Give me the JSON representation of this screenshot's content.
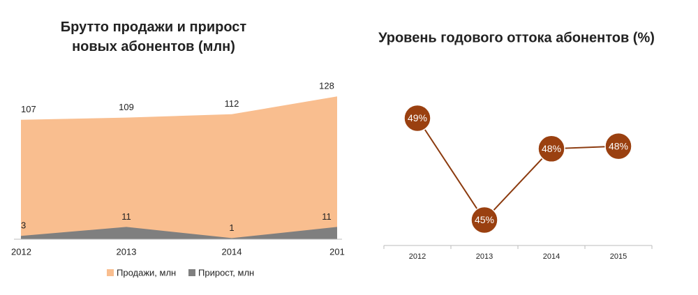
{
  "chart_data": [
    {
      "type": "area",
      "title": "Брутто продажи и прирост новых абонентов (млн)",
      "categories": [
        "2012",
        "2013",
        "2014",
        "201"
      ],
      "series": [
        {
          "name": "Продажи, млн",
          "color": "#f9be8f",
          "values": [
            107,
            109,
            112,
            128
          ]
        },
        {
          "name": "Прирост, млн",
          "color": "#7f7f7f",
          "values": [
            3,
            11,
            1,
            11
          ]
        }
      ],
      "ylim": [
        0,
        140
      ],
      "legend": "bottom"
    },
    {
      "type": "line",
      "title": "Уровень годового оттока абонентов (%)",
      "categories": [
        "2012",
        "2013",
        "2014",
        "2015"
      ],
      "values": [
        49,
        45,
        47.8,
        47.9
      ],
      "value_labels": [
        "49%",
        "45%",
        "48%",
        "48%"
      ],
      "color": "#8b3a0e",
      "ylim": [
        44,
        50
      ]
    }
  ]
}
